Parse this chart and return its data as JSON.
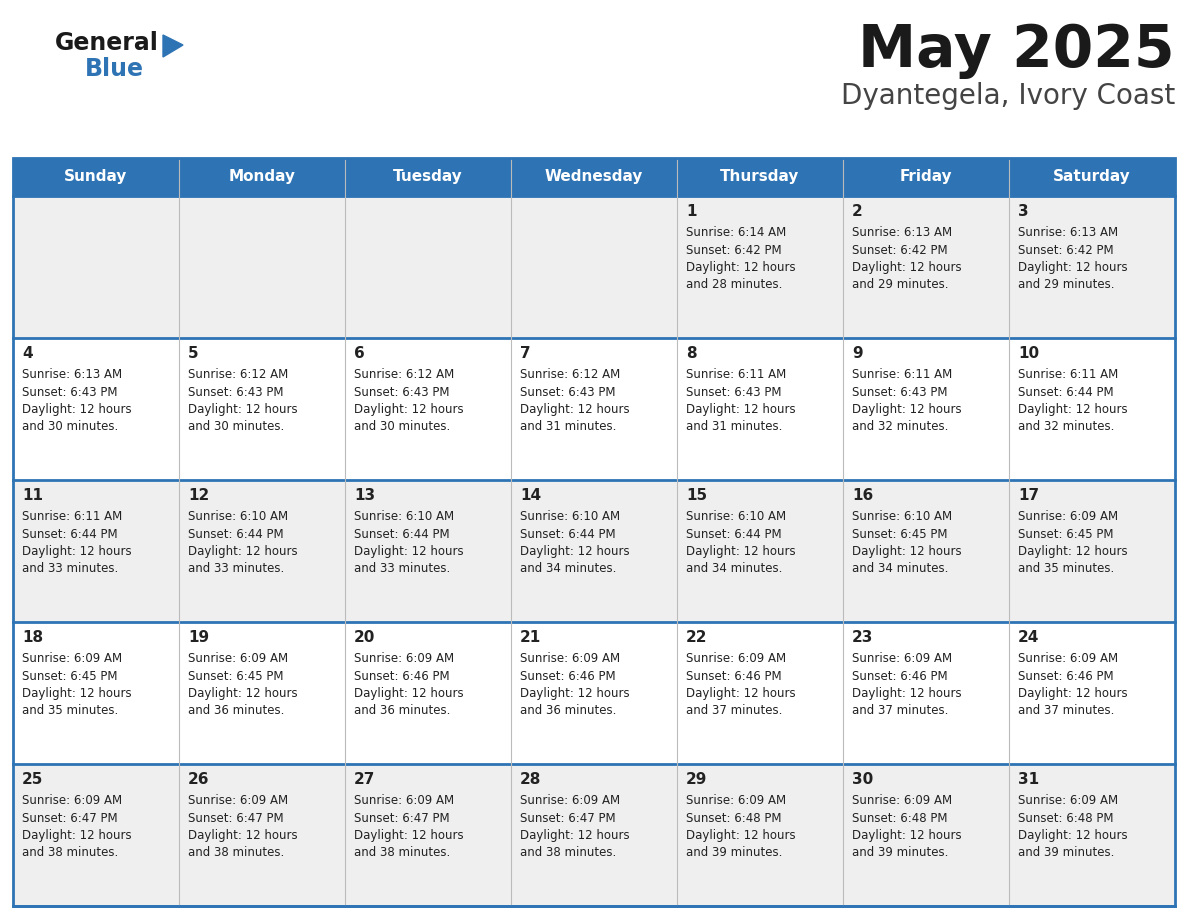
{
  "title": "May 2025",
  "subtitle": "Dyantegela, Ivory Coast",
  "days_of_week": [
    "Sunday",
    "Monday",
    "Tuesday",
    "Wednesday",
    "Thursday",
    "Friday",
    "Saturday"
  ],
  "header_bg": "#2e74b5",
  "header_text": "#ffffff",
  "row_bg_odd": "#efefef",
  "row_bg_even": "#ffffff",
  "separator_color": "#2e74b5",
  "cell_text_color": "#222222",
  "title_color": "#1a1a1a",
  "subtitle_color": "#444444",
  "logo_general_color": "#1a1a1a",
  "logo_blue_color": "#2e74b5",
  "logo_triangle_color": "#2e74b5",
  "calendar_data": [
    [
      null,
      null,
      null,
      null,
      {
        "day": 1,
        "sunrise": "6:14 AM",
        "sunset": "6:42 PM",
        "daylight": "12 hours and 28 minutes."
      },
      {
        "day": 2,
        "sunrise": "6:13 AM",
        "sunset": "6:42 PM",
        "daylight": "12 hours and 29 minutes."
      },
      {
        "day": 3,
        "sunrise": "6:13 AM",
        "sunset": "6:42 PM",
        "daylight": "12 hours and 29 minutes."
      }
    ],
    [
      {
        "day": 4,
        "sunrise": "6:13 AM",
        "sunset": "6:43 PM",
        "daylight": "12 hours and 30 minutes."
      },
      {
        "day": 5,
        "sunrise": "6:12 AM",
        "sunset": "6:43 PM",
        "daylight": "12 hours and 30 minutes."
      },
      {
        "day": 6,
        "sunrise": "6:12 AM",
        "sunset": "6:43 PM",
        "daylight": "12 hours and 30 minutes."
      },
      {
        "day": 7,
        "sunrise": "6:12 AM",
        "sunset": "6:43 PM",
        "daylight": "12 hours and 31 minutes."
      },
      {
        "day": 8,
        "sunrise": "6:11 AM",
        "sunset": "6:43 PM",
        "daylight": "12 hours and 31 minutes."
      },
      {
        "day": 9,
        "sunrise": "6:11 AM",
        "sunset": "6:43 PM",
        "daylight": "12 hours and 32 minutes."
      },
      {
        "day": 10,
        "sunrise": "6:11 AM",
        "sunset": "6:44 PM",
        "daylight": "12 hours and 32 minutes."
      }
    ],
    [
      {
        "day": 11,
        "sunrise": "6:11 AM",
        "sunset": "6:44 PM",
        "daylight": "12 hours and 33 minutes."
      },
      {
        "day": 12,
        "sunrise": "6:10 AM",
        "sunset": "6:44 PM",
        "daylight": "12 hours and 33 minutes."
      },
      {
        "day": 13,
        "sunrise": "6:10 AM",
        "sunset": "6:44 PM",
        "daylight": "12 hours and 33 minutes."
      },
      {
        "day": 14,
        "sunrise": "6:10 AM",
        "sunset": "6:44 PM",
        "daylight": "12 hours and 34 minutes."
      },
      {
        "day": 15,
        "sunrise": "6:10 AM",
        "sunset": "6:44 PM",
        "daylight": "12 hours and 34 minutes."
      },
      {
        "day": 16,
        "sunrise": "6:10 AM",
        "sunset": "6:45 PM",
        "daylight": "12 hours and 34 minutes."
      },
      {
        "day": 17,
        "sunrise": "6:09 AM",
        "sunset": "6:45 PM",
        "daylight": "12 hours and 35 minutes."
      }
    ],
    [
      {
        "day": 18,
        "sunrise": "6:09 AM",
        "sunset": "6:45 PM",
        "daylight": "12 hours and 35 minutes."
      },
      {
        "day": 19,
        "sunrise": "6:09 AM",
        "sunset": "6:45 PM",
        "daylight": "12 hours and 36 minutes."
      },
      {
        "day": 20,
        "sunrise": "6:09 AM",
        "sunset": "6:46 PM",
        "daylight": "12 hours and 36 minutes."
      },
      {
        "day": 21,
        "sunrise": "6:09 AM",
        "sunset": "6:46 PM",
        "daylight": "12 hours and 36 minutes."
      },
      {
        "day": 22,
        "sunrise": "6:09 AM",
        "sunset": "6:46 PM",
        "daylight": "12 hours and 37 minutes."
      },
      {
        "day": 23,
        "sunrise": "6:09 AM",
        "sunset": "6:46 PM",
        "daylight": "12 hours and 37 minutes."
      },
      {
        "day": 24,
        "sunrise": "6:09 AM",
        "sunset": "6:46 PM",
        "daylight": "12 hours and 37 minutes."
      }
    ],
    [
      {
        "day": 25,
        "sunrise": "6:09 AM",
        "sunset": "6:47 PM",
        "daylight": "12 hours and 38 minutes."
      },
      {
        "day": 26,
        "sunrise": "6:09 AM",
        "sunset": "6:47 PM",
        "daylight": "12 hours and 38 minutes."
      },
      {
        "day": 27,
        "sunrise": "6:09 AM",
        "sunset": "6:47 PM",
        "daylight": "12 hours and 38 minutes."
      },
      {
        "day": 28,
        "sunrise": "6:09 AM",
        "sunset": "6:47 PM",
        "daylight": "12 hours and 38 minutes."
      },
      {
        "day": 29,
        "sunrise": "6:09 AM",
        "sunset": "6:48 PM",
        "daylight": "12 hours and 39 minutes."
      },
      {
        "day": 30,
        "sunrise": "6:09 AM",
        "sunset": "6:48 PM",
        "daylight": "12 hours and 39 minutes."
      },
      {
        "day": 31,
        "sunrise": "6:09 AM",
        "sunset": "6:48 PM",
        "daylight": "12 hours and 39 minutes."
      }
    ]
  ]
}
